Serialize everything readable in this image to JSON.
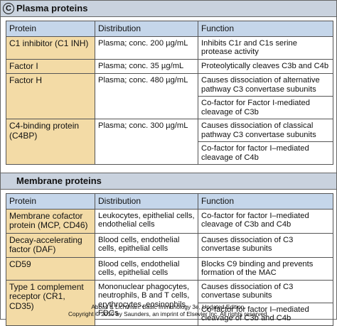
{
  "label": "C",
  "sections": [
    {
      "title": "Plasma proteins",
      "columns": [
        "Protein",
        "Distribution",
        "Function"
      ],
      "rows": [
        {
          "protein": "C1 inhibitor (C1 INH)",
          "distribution": "Plasma; conc. 200 µg/mL",
          "function": [
            "Inhibits C1r and C1s serine protease activity"
          ]
        },
        {
          "protein": "Factor I",
          "distribution": "Plasma; conc. 35 µg/mL",
          "function": [
            "Proteolytically cleaves C3b and C4b"
          ]
        },
        {
          "protein": "Factor H",
          "distribution": "Plasma; conc. 480 µg/mL",
          "function": [
            "Causes dissociation of alternative pathway C3 convertase subunits",
            "Co-factor for Factor I-mediated cleavage of C3b"
          ]
        },
        {
          "protein": "C4-binding protein (C4BP)",
          "distribution": "Plasma; conc. 300 µg/mL",
          "function": [
            "Causes dissociation of classical pathway C3 convertase subunits",
            "Co-factor for factor I–mediated cleavage of C4b"
          ]
        }
      ]
    },
    {
      "title": "Membrane proteins",
      "columns": [
        "Protein",
        "Distribution",
        "Function"
      ],
      "rows": [
        {
          "protein": "Membrane cofactor protein (MCP, CD46)",
          "distribution": "Leukocytes, epithelial cells, endothelial cells",
          "function": [
            "Co-factor for factor I–mediated cleavage of C3b and C4b"
          ]
        },
        {
          "protein": "Decay-accelerating factor (DAF)",
          "distribution": "Blood cells, endothelial cells, epithelial cells",
          "function": [
            "Causes dissociation of C3 convertase subunits"
          ]
        },
        {
          "protein": "CD59",
          "distribution": "Blood cells, endothelial cells, epithelial cells",
          "function": [
            "Blocks C9 binding and prevents formation of the MAC"
          ]
        },
        {
          "protein": "Type 1 complement receptor (CR1, CD35)",
          "distribution": "Mononuclear phagocytes, neutrophils, B and T cells, erythrocytes, eosinophils, FDCs",
          "function": [
            "Causes dissociation of C3 convertase subunits",
            "Co-factor for factor I–mediated cleavage of C3b and C4b"
          ]
        }
      ]
    }
  ],
  "footer": [
    "Abbas & Lichtman: Basic Immunology 3e, Updated Edition.",
    "Copyright © 2010 by Saunders, an imprint of Elsevier Inc. All rights reserved."
  ]
}
